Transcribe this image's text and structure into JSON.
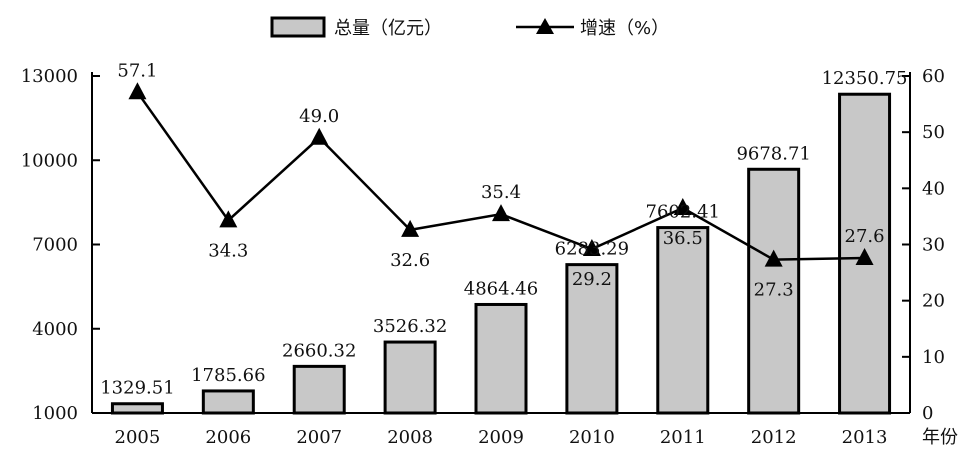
{
  "chart_data": {
    "type": "bar+line",
    "categories": [
      "2005",
      "2006",
      "2007",
      "2008",
      "2009",
      "2010",
      "2011",
      "2012",
      "2013"
    ],
    "xlabel_suffix": "年份",
    "series": [
      {
        "name": "总量（亿元）",
        "type": "bar",
        "axis": "left",
        "values": [
          1329.51,
          1785.66,
          2660.32,
          3526.32,
          4864.46,
          6283.29,
          7602.41,
          9678.71,
          12350.75
        ],
        "labels": [
          "1329.51",
          "1785.66",
          "2660.32",
          "3526.32",
          "4864.46",
          "6283.29",
          "7602.41",
          "9678.71",
          "12350.75"
        ],
        "color": "#c8c8c8"
      },
      {
        "name": "增速（%）",
        "type": "line",
        "axis": "right",
        "marker": "triangle",
        "values": [
          57.1,
          34.3,
          49.0,
          32.6,
          35.4,
          29.2,
          36.5,
          27.3,
          27.6
        ],
        "labels": [
          "57.1",
          "34.3",
          "49.0",
          "32.6",
          "35.4",
          "29.2",
          "36.5",
          "27.3",
          "27.6"
        ],
        "color": "#000000"
      }
    ],
    "y_left": {
      "ylim": [
        1000,
        13000
      ],
      "ticks": [
        "1000",
        "4000",
        "7000",
        "10000",
        "13000"
      ]
    },
    "y_right": {
      "ylim": [
        0,
        60
      ],
      "ticks": [
        "0",
        "10",
        "20",
        "30",
        "40",
        "50",
        "60"
      ]
    },
    "legend_position": "top-center",
    "grid": false
  }
}
